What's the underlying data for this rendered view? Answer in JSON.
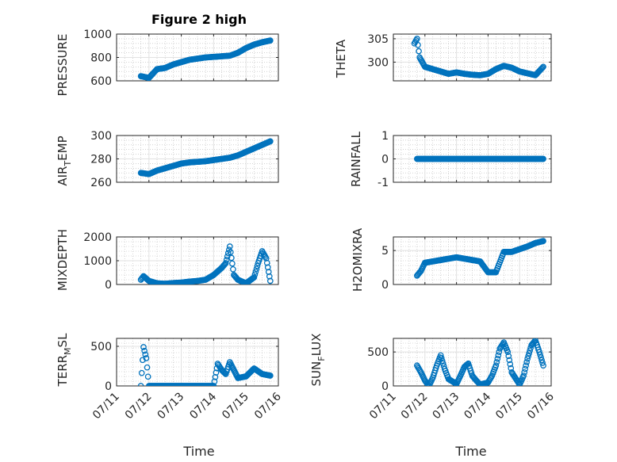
{
  "chart_data": [
    {
      "type": "scatter",
      "title": "Figure 2 high",
      "ylabel": "PRESSURE",
      "ylim": [
        600,
        1000
      ],
      "yticks": [
        600,
        800,
        1000
      ],
      "xlim": [
        "07/11",
        "07/16"
      ],
      "x_ticks": [],
      "xlabel": "",
      "grid": true,
      "series": [
        {
          "x": [
            "07/11 18:00",
            "07/12 00:00",
            "07/12 06:00",
            "07/12 12:00",
            "07/12 18:00",
            "07/13 00:00",
            "07/13 06:00",
            "07/13 12:00",
            "07/13 18:00",
            "07/14 00:00",
            "07/14 06:00",
            "07/14 12:00",
            "07/14 18:00",
            "07/15 00:00",
            "07/15 06:00",
            "07/15 12:00",
            "07/15 18:00"
          ],
          "y": [
            640,
            625,
            700,
            710,
            740,
            760,
            780,
            790,
            800,
            805,
            810,
            815,
            840,
            880,
            910,
            930,
            945
          ]
        }
      ]
    },
    {
      "type": "scatter",
      "ylabel": "THETA",
      "ylim": [
        296,
        306
      ],
      "yticks": [
        300,
        305
      ],
      "xlim": [
        "07/11",
        "07/16"
      ],
      "x_ticks": [],
      "xlabel": "",
      "grid": true,
      "series": [
        {
          "x": [
            "07/11 16:00",
            "07/11 18:00",
            "07/11 20:00",
            "07/12 00:00",
            "07/12 06:00",
            "07/12 12:00",
            "07/12 18:00",
            "07/13 00:00",
            "07/13 06:00",
            "07/13 12:00",
            "07/13 18:00",
            "07/14 00:00",
            "07/14 06:00",
            "07/14 12:00",
            "07/14 18:00",
            "07/15 00:00",
            "07/15 06:00",
            "07/15 12:00",
            "07/15 18:00"
          ],
          "y": [
            304,
            305,
            301,
            299,
            298.5,
            298,
            297.5,
            297.8,
            297.5,
            297.3,
            297.2,
            297.5,
            298.5,
            299.2,
            298.8,
            298,
            297.6,
            297.2,
            299
          ]
        }
      ]
    },
    {
      "type": "scatter",
      "ylabel": "AIR_TEMP",
      "ylim": [
        260,
        300
      ],
      "yticks": [
        260,
        280,
        300
      ],
      "xlim": [
        "07/11",
        "07/16"
      ],
      "x_ticks": [],
      "xlabel": "",
      "grid": true,
      "series": [
        {
          "x": [
            "07/11 18:00",
            "07/12 00:00",
            "07/12 06:00",
            "07/12 12:00",
            "07/12 18:00",
            "07/13 00:00",
            "07/13 06:00",
            "07/13 12:00",
            "07/13 18:00",
            "07/14 00:00",
            "07/14 06:00",
            "07/14 12:00",
            "07/14 18:00",
            "07/15 00:00",
            "07/15 06:00",
            "07/15 12:00",
            "07/15 18:00"
          ],
          "y": [
            268,
            267,
            270,
            272,
            274,
            276,
            277,
            277.5,
            278,
            279,
            280,
            281,
            283,
            286,
            289,
            292,
            295
          ]
        }
      ]
    },
    {
      "type": "scatter",
      "ylabel": "RAINFALL",
      "ylim": [
        -1,
        1
      ],
      "yticks": [
        -1,
        0,
        1
      ],
      "xlim": [
        "07/11",
        "07/16"
      ],
      "x_ticks": [],
      "xlabel": "",
      "grid": true,
      "series": [
        {
          "x": [
            "07/11 18:00",
            "07/12 00:00",
            "07/12 06:00",
            "07/12 12:00",
            "07/12 18:00",
            "07/13 00:00",
            "07/13 06:00",
            "07/13 12:00",
            "07/13 18:00",
            "07/14 00:00",
            "07/14 06:00",
            "07/14 12:00",
            "07/14 18:00",
            "07/15 00:00",
            "07/15 06:00",
            "07/15 12:00",
            "07/15 18:00"
          ],
          "y": [
            0,
            0,
            0,
            0,
            0,
            0,
            0,
            0,
            0,
            0,
            0,
            0,
            0,
            0,
            0,
            0,
            0
          ]
        }
      ]
    },
    {
      "type": "scatter",
      "ylabel": "MIXDEPTH",
      "ylim": [
        0,
        2000
      ],
      "yticks": [
        0,
        1000,
        2000
      ],
      "xlim": [
        "07/11",
        "07/16"
      ],
      "x_ticks": [],
      "xlabel": "",
      "grid": true,
      "series": [
        {
          "x": [
            "07/11 18:00",
            "07/11 20:00",
            "07/12 00:00",
            "07/12 06:00",
            "07/12 12:00",
            "07/12 18:00",
            "07/13 00:00",
            "07/13 06:00",
            "07/13 12:00",
            "07/13 18:00",
            "07/14 00:00",
            "07/14 06:00",
            "07/14 09:00",
            "07/14 12:00",
            "07/14 15:00",
            "07/14 18:00",
            "07/15 00:00",
            "07/15 06:00",
            "07/15 09:00",
            "07/15 12:00",
            "07/15 15:00",
            "07/15 18:00"
          ],
          "y": [
            200,
            350,
            150,
            50,
            30,
            60,
            80,
            120,
            150,
            200,
            400,
            700,
            900,
            1600,
            400,
            200,
            50,
            300,
            900,
            1400,
            1100,
            150
          ]
        }
      ]
    },
    {
      "type": "scatter",
      "ylabel": "H2OMIXRA",
      "ylim": [
        0,
        7
      ],
      "yticks": [
        0,
        5
      ],
      "xlim": [
        "07/11",
        "07/16"
      ],
      "x_ticks": [],
      "xlabel": "",
      "grid": true,
      "series": [
        {
          "x": [
            "07/11 18:00",
            "07/11 21:00",
            "07/12 00:00",
            "07/12 06:00",
            "07/12 12:00",
            "07/12 18:00",
            "07/13 00:00",
            "07/13 06:00",
            "07/13 12:00",
            "07/13 18:00",
            "07/14 00:00",
            "07/14 06:00",
            "07/14 12:00",
            "07/14 18:00",
            "07/15 00:00",
            "07/15 06:00",
            "07/15 12:00",
            "07/15 18:00"
          ],
          "y": [
            1.3,
            2,
            3.2,
            3.4,
            3.6,
            3.8,
            4,
            3.8,
            3.6,
            3.4,
            1.8,
            1.8,
            4.8,
            4.8,
            5.2,
            5.6,
            6.1,
            6.4
          ]
        }
      ]
    },
    {
      "type": "scatter",
      "ylabel": "TERR_MSL",
      "ylim": [
        0,
        600
      ],
      "yticks": [
        0,
        500
      ],
      "xlim": [
        "07/11",
        "07/16"
      ],
      "x_ticks": [
        "07/11",
        "07/12",
        "07/13",
        "07/14",
        "07/15",
        "07/16"
      ],
      "xlabel": "Time",
      "grid": true,
      "series": [
        {
          "x": [
            "07/11 18:00",
            "07/11 20:00",
            "07/11 22:00",
            "07/12 00:00",
            "07/12 06:00",
            "07/12 12:00",
            "07/12 18:00",
            "07/13 00:00",
            "07/13 06:00",
            "07/13 12:00",
            "07/13 18:00",
            "07/14 00:00",
            "07/14 03:00",
            "07/14 06:00",
            "07/14 09:00",
            "07/14 12:00",
            "07/14 18:00",
            "07/15 00:00",
            "07/15 06:00",
            "07/15 12:00",
            "07/15 18:00"
          ],
          "y": [
            0,
            490,
            350,
            0,
            0,
            0,
            0,
            0,
            0,
            0,
            0,
            0,
            280,
            200,
            150,
            300,
            100,
            120,
            220,
            150,
            130
          ]
        }
      ]
    },
    {
      "type": "scatter",
      "ylabel": "SUN_FLUX",
      "ylim": [
        0,
        700
      ],
      "yticks": [
        0,
        500
      ],
      "xlim": [
        "07/11",
        "07/16"
      ],
      "x_ticks": [
        "07/11",
        "07/12",
        "07/13",
        "07/14",
        "07/15",
        "07/16"
      ],
      "xlabel": "Time",
      "grid": true,
      "series": [
        {
          "x": [
            "07/11 18:00",
            "07/11 21:00",
            "07/12 00:00",
            "07/12 03:00",
            "07/12 06:00",
            "07/12 09:00",
            "07/12 12:00",
            "07/12 15:00",
            "07/12 18:00",
            "07/13 00:00",
            "07/13 03:00",
            "07/13 06:00",
            "07/13 09:00",
            "07/13 12:00",
            "07/13 15:00",
            "07/13 18:00",
            "07/14 00:00",
            "07/14 03:00",
            "07/14 06:00",
            "07/14 09:00",
            "07/14 12:00",
            "07/14 15:00",
            "07/14 18:00",
            "07/15 00:00",
            "07/15 03:00",
            "07/15 06:00",
            "07/15 09:00",
            "07/15 12:00",
            "07/15 15:00",
            "07/15 18:00"
          ],
          "y": [
            300,
            200,
            80,
            0,
            120,
            300,
            450,
            250,
            100,
            30,
            150,
            280,
            330,
            150,
            80,
            20,
            50,
            150,
            300,
            550,
            640,
            500,
            200,
            20,
            150,
            400,
            600,
            670,
            500,
            300
          ]
        }
      ]
    }
  ],
  "labels": {
    "title": "Figure 2 high",
    "xlabel_left": "Time",
    "xlabel_right": "Time",
    "y1": "PRESSURE",
    "y2": "THETA",
    "y3_main": "AIR",
    "y3_sub": "T",
    "y3_tail": "EMP",
    "y4": "RAINFALL",
    "y5": "MIXDEPTH",
    "y6": "H2OMIXRA",
    "y7_main": "TERR",
    "y7_sub": "M",
    "y7_tail": "SL",
    "y8_main": "SUN",
    "y8_sub": "F",
    "y8_tail": "LUX"
  },
  "style": {
    "marker_color": "#0072BD",
    "axis_color": "#262626",
    "grid_color": "#b8b8b8"
  }
}
